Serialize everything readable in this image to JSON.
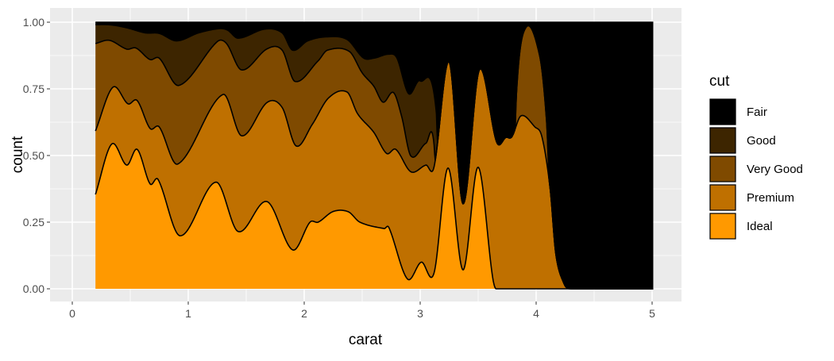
{
  "chart_data": {
    "type": "area",
    "position": "fill",
    "xlabel": "carat",
    "ylabel": "count",
    "xlim": [
      0,
      5.25
    ],
    "ylim": [
      0,
      1
    ],
    "x_ticks": [
      "0",
      "1",
      "2",
      "3",
      "4",
      "5"
    ],
    "y_ticks": [
      "0.00",
      "0.25",
      "0.50",
      "0.75",
      "1.00"
    ],
    "grid": true,
    "legend": {
      "title": "cut",
      "placement": "right"
    },
    "series": [
      {
        "name": "Fair",
        "color": "#000000",
        "x": [
          0.2,
          5.01
        ],
        "y_top": [
          1,
          1
        ]
      },
      {
        "name": "Good",
        "color": "#3D2500",
        "x": [
          0.2,
          0.33,
          0.47,
          0.63,
          0.75,
          0.9,
          1.09,
          1.27,
          1.34,
          1.43,
          1.66,
          1.81,
          1.9,
          2.03,
          2.19,
          2.37,
          2.51,
          2.6,
          2.73,
          2.8,
          2.9,
          3.0,
          3.14,
          3.17,
          5.01
        ],
        "y_top": [
          0.991,
          0.99,
          0.979,
          0.96,
          0.958,
          0.93,
          0.96,
          0.976,
          0.97,
          0.94,
          0.974,
          0.96,
          0.895,
          0.93,
          0.945,
          0.935,
          0.866,
          0.865,
          0.88,
          0.865,
          0.732,
          0.78,
          0.657,
          0,
          0
        ]
      },
      {
        "name": "Very Good",
        "color": "#7F4A00",
        "x": [
          0.2,
          0.32,
          0.47,
          0.55,
          0.67,
          0.75,
          0.92,
          1.25,
          1.33,
          1.46,
          1.68,
          1.81,
          1.92,
          2.12,
          2.2,
          2.39,
          2.5,
          2.6,
          2.68,
          2.77,
          2.84,
          2.92,
          3.05,
          3.12,
          3.17,
          3.78,
          3.83,
          3.91,
          4.03,
          4.09,
          4.12,
          4.19,
          4.3,
          5.01
        ],
        "y_top": [
          0.92,
          0.932,
          0.899,
          0.903,
          0.86,
          0.865,
          0.763,
          0.927,
          0.92,
          0.821,
          0.9,
          0.895,
          0.778,
          0.855,
          0.895,
          0.89,
          0.81,
          0.76,
          0.7,
          0.736,
          0.647,
          0.498,
          0.546,
          0.539,
          0,
          0,
          0.73,
          0.979,
          0.875,
          0.628,
          0.33,
          0.07,
          0,
          0
        ]
      },
      {
        "name": "Premium",
        "color": "#BF7000",
        "x": [
          0.2,
          0.35,
          0.48,
          0.56,
          0.67,
          0.75,
          0.91,
          1.3,
          1.46,
          1.68,
          1.81,
          1.93,
          2.07,
          2.21,
          2.37,
          2.46,
          2.6,
          2.71,
          2.79,
          2.92,
          3.05,
          3.12,
          3.25,
          3.37,
          3.51,
          3.66,
          3.74,
          3.79,
          3.87,
          3.99,
          4.05,
          4.12,
          4.17,
          4.24,
          4.29,
          5.01
        ],
        "y_top": [
          0.592,
          0.756,
          0.694,
          0.706,
          0.602,
          0.607,
          0.468,
          0.729,
          0.574,
          0.699,
          0.68,
          0.536,
          0.617,
          0.716,
          0.738,
          0.657,
          0.587,
          0.508,
          0.523,
          0.439,
          0.464,
          0.458,
          0.851,
          0.319,
          0.821,
          0.55,
          0.568,
          0.57,
          0.649,
          0.607,
          0.57,
          0.379,
          0.13,
          0.02,
          0,
          0
        ]
      },
      {
        "name": "Ideal",
        "color": "#FF9900",
        "x": [
          0.2,
          0.34,
          0.47,
          0.56,
          0.67,
          0.74,
          0.93,
          1.24,
          1.43,
          1.68,
          1.9,
          2.05,
          2.12,
          2.25,
          2.38,
          2.48,
          2.69,
          2.73,
          2.89,
          3.01,
          3.12,
          3.24,
          3.37,
          3.5,
          3.63,
          3.69,
          5.01
        ],
        "y_top": [
          0.354,
          0.543,
          0.464,
          0.523,
          0.394,
          0.41,
          0.199,
          0.4,
          0.215,
          0.327,
          0.146,
          0.25,
          0.25,
          0.29,
          0.289,
          0.25,
          0.226,
          0.23,
          0.037,
          0.1,
          0.06,
          0.453,
          0.071,
          0.456,
          0.03,
          0,
          0
        ]
      }
    ]
  }
}
